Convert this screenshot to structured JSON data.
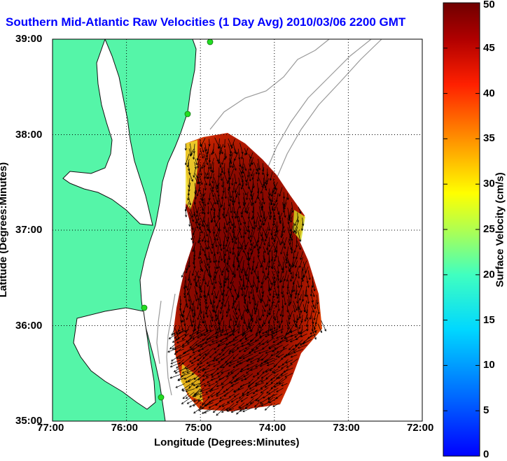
{
  "title": "Southern Mid-Atlantic Raw Velocities (1 Day Avg) 2010/03/06 2200 GMT",
  "map": {
    "x_label": "Longitude (Degrees:Minutes)",
    "y_label": "Latitude (Degrees:Minutes)",
    "x_ticks": [
      "77:00",
      "76:00",
      "75:00",
      "74:00",
      "73:00",
      "72:00"
    ],
    "y_ticks": [
      "39:00",
      "38:00",
      "37:00",
      "36:00",
      "35:00"
    ],
    "lon_range": [
      -77,
      -72
    ],
    "lat_range": [
      35,
      39
    ],
    "land_color": "#55f5a8",
    "coast_color": "#111111",
    "bathymetry_color": "#9a9a9a",
    "station_color": "#22dd22",
    "grid": "dotted"
  },
  "colorbar": {
    "label": "Surface Velocity (cm/s)",
    "ticks": [
      "0",
      "5",
      "10",
      "15",
      "20",
      "25",
      "30",
      "35",
      "40",
      "45",
      "50"
    ],
    "range": [
      0,
      50
    ],
    "colormap": "jet"
  }
}
